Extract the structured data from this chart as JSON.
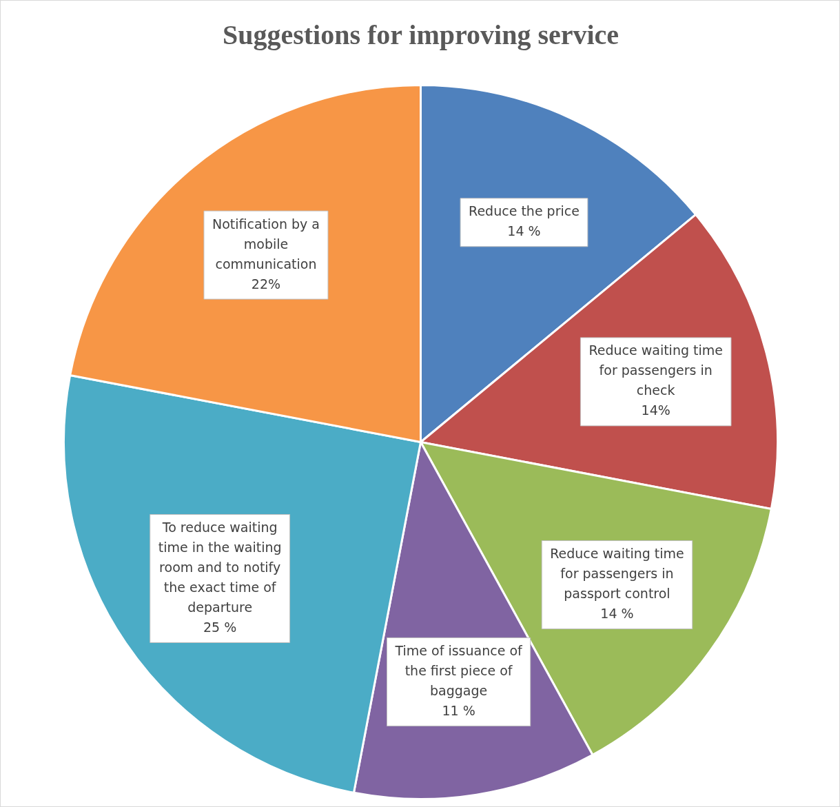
{
  "chart_data": {
    "type": "pie",
    "title": "Suggestions for improving service",
    "categories": [
      "Reduce the price",
      "Reduce waiting time for passengers in check",
      "Reduce waiting time for passengers in passport control",
      "Time of issuance of the first piece of baggage",
      "To reduce waiting time in the waiting room and to notify the exact time of departure",
      "Notification by a mobile communication"
    ],
    "values": [
      14,
      14,
      14,
      11,
      25,
      22
    ],
    "value_labels": [
      "14 %",
      "14%",
      "14 %",
      "11 %",
      "25 %",
      "22%"
    ],
    "colors": [
      "#4f81bd",
      "#c0504d",
      "#9bbb59",
      "#8064a2",
      "#4bacc6",
      "#f79646"
    ],
    "legend": false
  }
}
